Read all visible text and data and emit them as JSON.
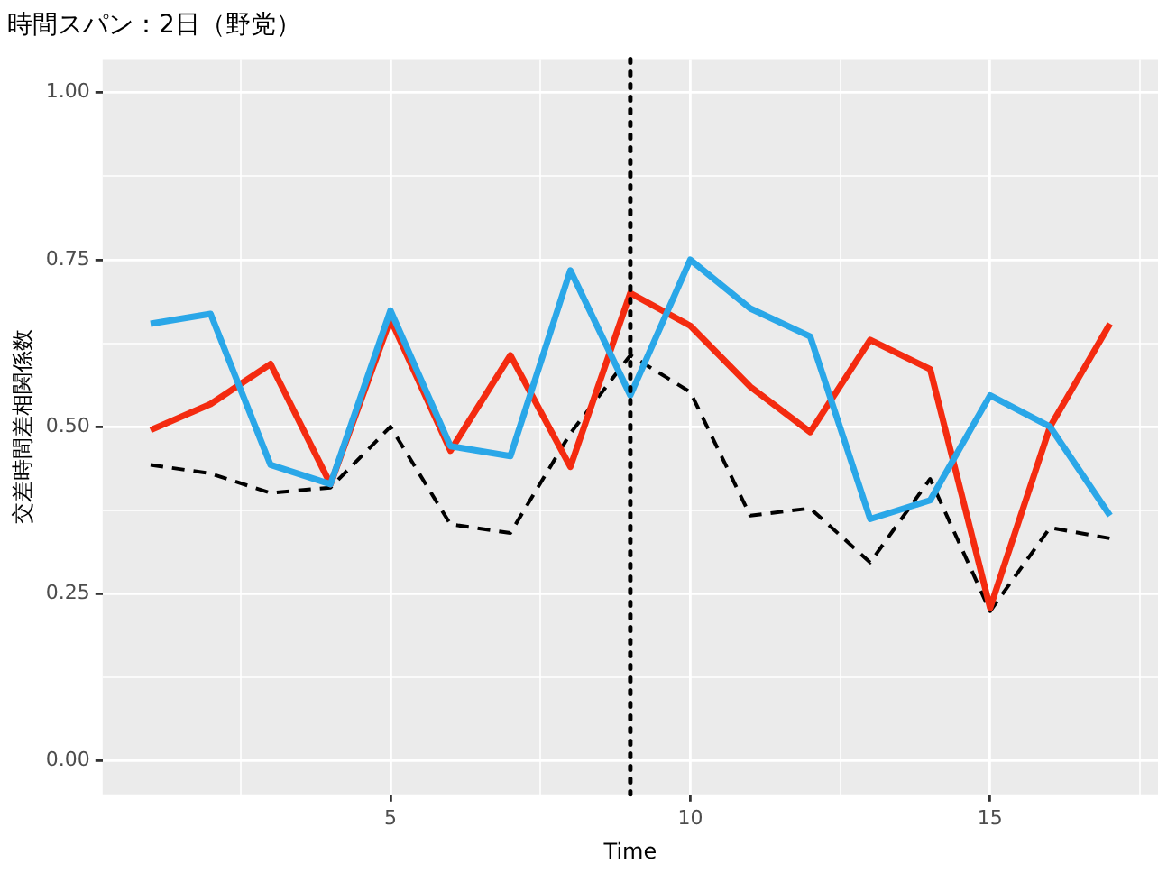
{
  "chart_data": {
    "type": "line",
    "title": "時間スパン：2日（野党）",
    "xlabel": "Time",
    "ylabel": "交差時間差相関係数",
    "x": [
      1,
      2,
      3,
      4,
      5,
      6,
      7,
      8,
      9,
      10,
      11,
      12,
      13,
      14,
      15,
      16,
      17
    ],
    "series": [
      {
        "color": "#2aa7e8",
        "line_style": "solid",
        "values": [
          0.654,
          0.669,
          0.443,
          0.414,
          0.674,
          0.471,
          0.456,
          0.734,
          0.547,
          0.75,
          0.677,
          0.635,
          0.362,
          0.39,
          0.547,
          0.5,
          0.367
        ]
      },
      {
        "color": "#f42b10",
        "line_style": "solid",
        "values": [
          0.495,
          0.534,
          0.594,
          0.414,
          0.661,
          0.464,
          0.607,
          0.44,
          0.7,
          0.651,
          0.56,
          0.492,
          0.63,
          0.586,
          0.229,
          0.5,
          0.654
        ]
      },
      {
        "color": "#000000",
        "line_style": "dashed",
        "values": [
          0.443,
          0.43,
          0.401,
          0.409,
          0.5,
          0.354,
          0.341,
          0.49,
          0.607,
          0.552,
          0.367,
          0.378,
          0.297,
          0.422,
          0.224,
          0.349,
          0.333
        ]
      }
    ],
    "xlim": [
      0.2,
      17.8
    ],
    "xticks": [
      {
        "value": 2.5,
        "label": null
      },
      5,
      {
        "value": 7.5,
        "label": null
      },
      10,
      {
        "value": 12.5,
        "label": null
      },
      15,
      {
        "value": 17.5,
        "label": null
      }
    ],
    "ylim": [
      -0.05,
      1.05
    ],
    "yticks": [
      "0.00",
      {
        "value": 0.125,
        "label": null
      },
      {
        "value": 0.25,
        "label": "0.25"
      },
      {
        "value": 0.375,
        "label": null
      },
      {
        "value": 0.5,
        "label": "0.50"
      },
      {
        "value": 0.625,
        "label": null
      },
      {
        "value": 0.75,
        "label": "0.75"
      },
      {
        "value": 0.875,
        "label": null
      },
      {
        "value": 1,
        "label": "1.00"
      }
    ],
    "ref_lines": [
      {
        "axis": "x",
        "value": 9,
        "color": "#000000",
        "line_style": "dotted"
      }
    ],
    "grid": true,
    "legend": false,
    "marker": "none"
  }
}
